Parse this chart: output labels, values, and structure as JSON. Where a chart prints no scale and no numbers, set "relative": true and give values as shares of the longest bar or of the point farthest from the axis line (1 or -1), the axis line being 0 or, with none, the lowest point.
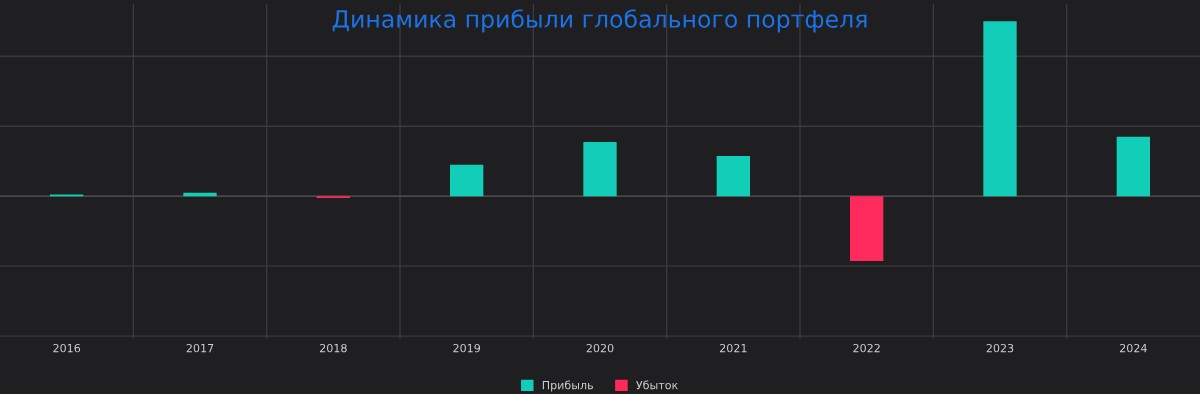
{
  "chart_data": {
    "type": "bar",
    "title": "Динамика прибыли глобального портфеля",
    "relative": true,
    "categories": [
      "2016",
      "2017",
      "2018",
      "2019",
      "2020",
      "2021",
      "2022",
      "2023",
      "2024"
    ],
    "series": [
      {
        "name": "Прибыль",
        "color": "#12cdb8",
        "values": [
          0.01,
          0.02,
          null,
          0.18,
          0.31,
          0.23,
          null,
          1,
          0.34
        ]
      },
      {
        "name": "Убыток",
        "color": "#ff2a5c",
        "values": [
          null,
          null,
          -0.01,
          null,
          null,
          null,
          -0.37,
          null,
          null
        ]
      }
    ],
    "grid": true,
    "legend": "bottom"
  }
}
